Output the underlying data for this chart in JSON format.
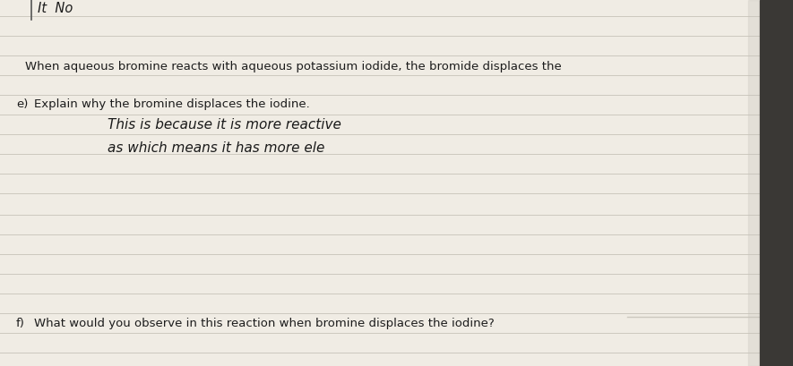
{
  "bg_color": "#f0ece4",
  "line_color": "#ccc8be",
  "top_text": "When aqueous bromine reacts with aqueous potassium iodide, the bromide displaces the",
  "question_e_label": "e)",
  "question_e_text": "Explain why the bromine displaces the iodine.",
  "handwriting_line1": "This is because it is more reactive",
  "handwriting_line2": "as which means it has more ele",
  "question_f_label": "f)",
  "question_f_text": "What would you observe in this reaction when bromine displaces the iodine?",
  "top_note": "It  No",
  "text_color": "#1c1c1c",
  "hand_color": "#1a1a1a",
  "dark_edge_color": "#3a3835"
}
